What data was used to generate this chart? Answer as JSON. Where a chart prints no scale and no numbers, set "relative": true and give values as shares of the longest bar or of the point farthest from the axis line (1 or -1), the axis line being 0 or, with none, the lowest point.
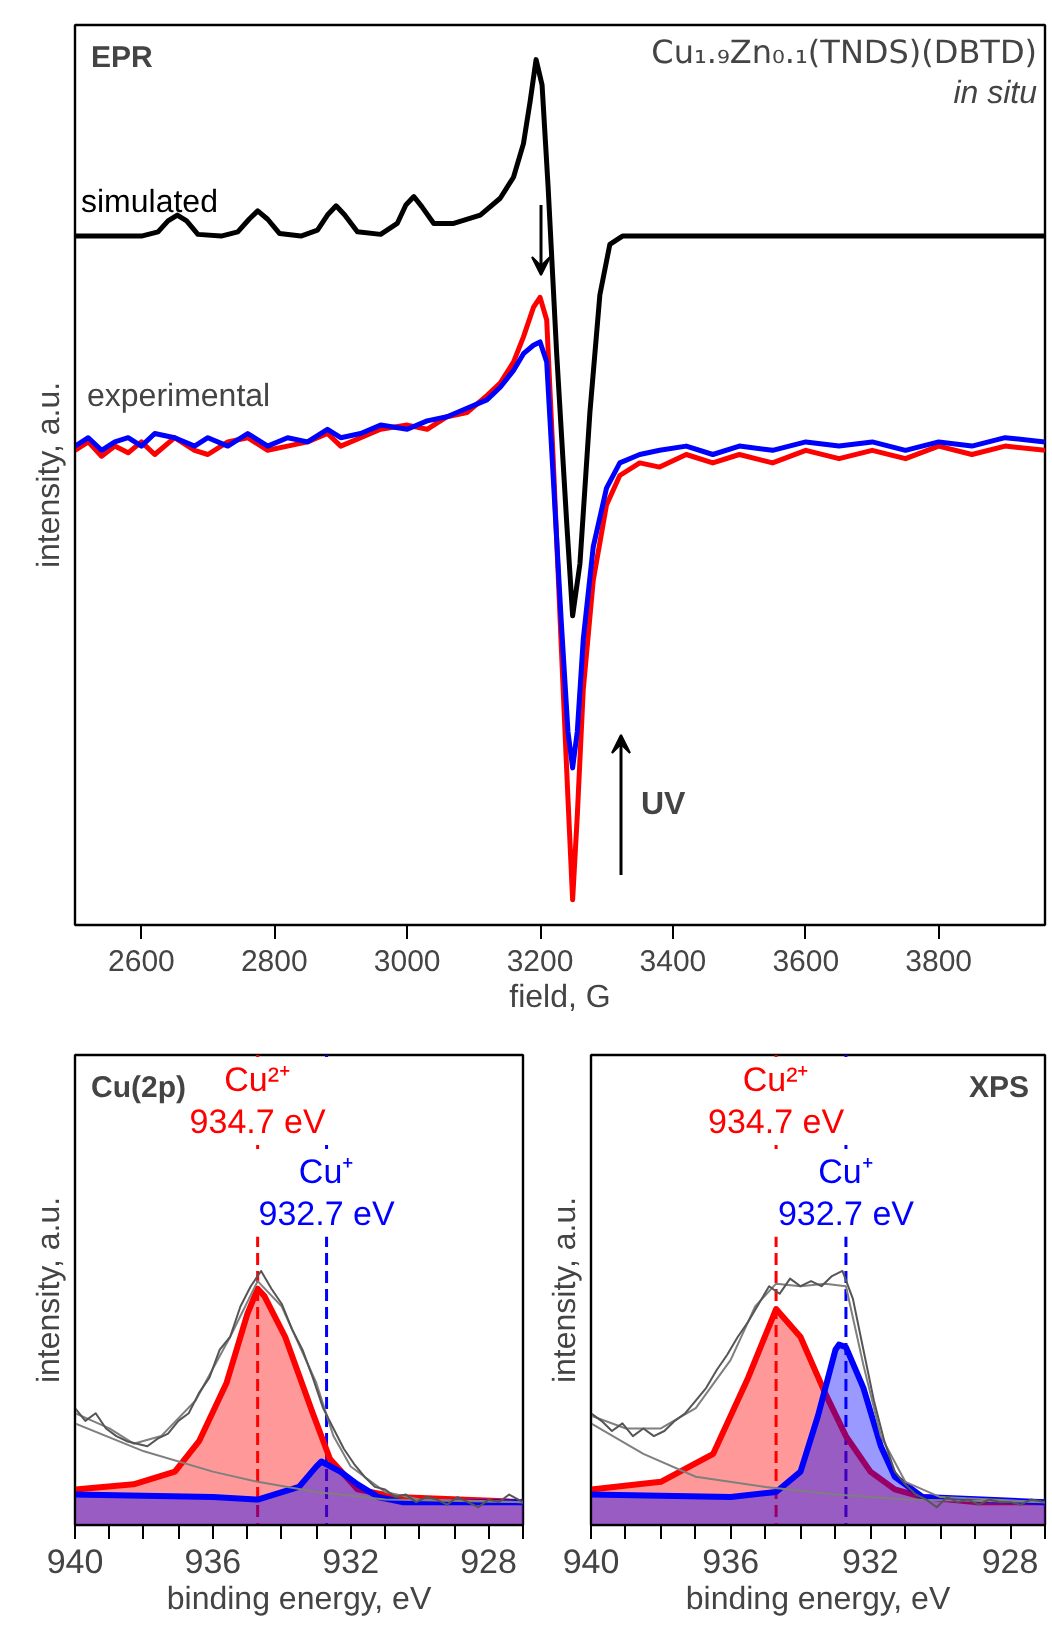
{
  "chart_data": [
    {
      "type": "line",
      "title": "EPR",
      "subtitle": "Cu₁.₉Zn₀.₁(TNDS)(DBTD)",
      "xlabel": "field, G",
      "ylabel": "intensity, a.u.",
      "relative": true,
      "grid": false,
      "xlim": [
        2500,
        3960
      ],
      "xticks": [
        2600,
        2800,
        3000,
        3200,
        3400,
        3600,
        3800
      ],
      "annotations": [
        "in situ",
        "experimental",
        "UV"
      ],
      "series": [
        {
          "name": "simulated",
          "color": "#000000",
          "x": [
            2500,
            2600,
            2625,
            2640,
            2654,
            2668,
            2685,
            2720,
            2745,
            2762,
            2775,
            2790,
            2808,
            2840,
            2865,
            2880,
            2893,
            2906,
            2925,
            2960,
            2985,
            2998,
            3010,
            3022,
            3040,
            3070,
            3110,
            3140,
            3160,
            3175,
            3185,
            3194,
            3203,
            3212,
            3225,
            3240,
            3249,
            3260,
            3275,
            3290,
            3305,
            3324,
            3960
          ],
          "values": [
            0.79,
            0.79,
            0.795,
            0.808,
            0.815,
            0.808,
            0.792,
            0.79,
            0.795,
            0.81,
            0.82,
            0.81,
            0.793,
            0.79,
            0.797,
            0.815,
            0.826,
            0.815,
            0.795,
            0.792,
            0.805,
            0.827,
            0.837,
            0.825,
            0.805,
            0.805,
            0.815,
            0.835,
            0.86,
            0.9,
            0.95,
            1.0,
            0.97,
            0.85,
            0.65,
            0.45,
            0.338,
            0.4,
            0.58,
            0.72,
            0.78,
            0.79,
            0.79
          ]
        },
        {
          "color": "#ff0000",
          "x": [
            2500,
            2520,
            2540,
            2560,
            2580,
            2600,
            2620,
            2650,
            2680,
            2700,
            2730,
            2760,
            2790,
            2820,
            2850,
            2880,
            2900,
            2930,
            2960,
            3000,
            3030,
            3060,
            3090,
            3120,
            3140,
            3160,
            3175,
            3190,
            3200,
            3210,
            3220,
            3232,
            3242,
            3249,
            3256,
            3265,
            3280,
            3300,
            3320,
            3350,
            3380,
            3420,
            3460,
            3500,
            3550,
            3600,
            3650,
            3700,
            3750,
            3800,
            3850,
            3900,
            3960
          ],
          "values": [
            0.535,
            0.545,
            0.528,
            0.54,
            0.532,
            0.545,
            0.53,
            0.55,
            0.535,
            0.53,
            0.545,
            0.55,
            0.535,
            0.54,
            0.545,
            0.555,
            0.54,
            0.55,
            0.56,
            0.565,
            0.56,
            0.575,
            0.58,
            0.6,
            0.615,
            0.64,
            0.67,
            0.705,
            0.717,
            0.69,
            0.52,
            0.3,
            0.12,
            0.0,
            0.1,
            0.25,
            0.38,
            0.47,
            0.505,
            0.52,
            0.515,
            0.53,
            0.52,
            0.53,
            0.52,
            0.535,
            0.525,
            0.535,
            0.525,
            0.54,
            0.53,
            0.54,
            0.535
          ]
        },
        {
          "color": "#0000ff",
          "x": [
            2500,
            2520,
            2540,
            2560,
            2580,
            2600,
            2620,
            2650,
            2680,
            2700,
            2730,
            2760,
            2790,
            2820,
            2850,
            2880,
            2900,
            2930,
            2960,
            3000,
            3030,
            3060,
            3090,
            3120,
            3140,
            3160,
            3175,
            3190,
            3200,
            3210,
            3220,
            3232,
            3242,
            3249,
            3256,
            3265,
            3280,
            3300,
            3320,
            3350,
            3380,
            3420,
            3460,
            3500,
            3550,
            3600,
            3650,
            3700,
            3750,
            3800,
            3850,
            3900,
            3960
          ],
          "values": [
            0.54,
            0.55,
            0.535,
            0.545,
            0.55,
            0.54,
            0.555,
            0.55,
            0.54,
            0.55,
            0.54,
            0.555,
            0.54,
            0.55,
            0.545,
            0.56,
            0.55,
            0.555,
            0.565,
            0.56,
            0.57,
            0.575,
            0.585,
            0.595,
            0.61,
            0.63,
            0.65,
            0.66,
            0.664,
            0.64,
            0.5,
            0.33,
            0.2,
            0.157,
            0.2,
            0.31,
            0.42,
            0.49,
            0.52,
            0.53,
            0.535,
            0.54,
            0.53,
            0.54,
            0.535,
            0.545,
            0.54,
            0.545,
            0.535,
            0.545,
            0.54,
            0.55,
            0.545
          ]
        }
      ]
    },
    {
      "type": "line",
      "title": "Cu(2p)",
      "xlabel": "binding energy, eV",
      "ylabel": "intensity, a.u.",
      "relative": true,
      "grid": false,
      "xlim": [
        940,
        927
      ],
      "xticks": [
        940,
        {
          "value": 939,
          "label": null
        },
        {
          "value": 938,
          "label": null
        },
        {
          "value": 937,
          "label": null
        },
        936,
        {
          "value": 935,
          "label": null
        },
        {
          "value": 934,
          "label": null
        },
        {
          "value": 933,
          "label": null
        },
        932,
        {
          "value": 931,
          "label": null
        },
        {
          "value": 930,
          "label": null
        },
        {
          "value": 929,
          "label": null
        },
        928,
        {
          "value": 927,
          "label": null
        }
      ],
      "ref_lines": [
        {
          "axis": "x",
          "value": 934.7,
          "label": "Cu²⁺\n934.7 eV",
          "color": "#ff0000",
          "line_style": "dashed"
        },
        {
          "axis": "x",
          "value": 932.7,
          "label": "Cu⁺\n932.7 eV",
          "color": "#0000ff",
          "line_style": "dashed"
        }
      ],
      "series": [
        {
          "type": "area",
          "color": "#ff0000",
          "x": [
            940,
            938.3,
            937.1,
            936.4,
            935.6,
            935.0,
            934.7,
            934.5,
            933.9,
            933.1,
            932.6,
            931.8,
            930.7,
            927
          ],
          "values": [
            0.14,
            0.16,
            0.21,
            0.33,
            0.56,
            0.83,
            0.93,
            0.9,
            0.74,
            0.44,
            0.26,
            0.14,
            0.11,
            0.09
          ]
        },
        {
          "type": "area",
          "color": "#0000ff",
          "x": [
            940,
            936,
            934.7,
            933.5,
            933.0,
            932.85,
            932.3,
            931.8,
            931.2,
            930.5,
            927
          ],
          "values": [
            0.12,
            0.11,
            0.1,
            0.15,
            0.23,
            0.25,
            0.21,
            0.16,
            0.11,
            0.09,
            0.09
          ]
        },
        {
          "color": "#7f7f7f",
          "x": [
            940,
            938,
            936,
            934.7,
            933,
            931,
            927
          ],
          "values": [
            0.4,
            0.29,
            0.21,
            0.17,
            0.13,
            0.1,
            0.09
          ]
        },
        {
          "color": "#7f7f7f",
          "x": [
            940,
            939,
            938.3,
            937.5,
            936.5,
            935.5,
            934.7,
            934,
            933,
            932.5,
            932,
            931,
            930,
            927
          ],
          "values": [
            0.44,
            0.38,
            0.32,
            0.35,
            0.49,
            0.74,
            0.96,
            0.86,
            0.56,
            0.35,
            0.23,
            0.13,
            0.1,
            0.09
          ]
        },
        {
          "color": "#555555",
          "x": [
            940,
            939.7,
            939.4,
            939.1,
            938.8,
            938.5,
            938.2,
            937.9,
            937.6,
            937.3,
            937.0,
            936.7,
            936.4,
            936.1,
            935.8,
            935.5,
            935.2,
            934.9,
            934.6,
            934.3,
            934.0,
            933.7,
            933.4,
            933.1,
            932.8,
            932.5,
            932.2,
            931.9,
            931.6,
            931.3,
            931.0,
            930.7,
            930.4,
            930.1,
            929.8,
            929.5,
            929.2,
            928.9,
            928.6,
            928.3,
            928,
            927.7,
            927.4,
            927
          ],
          "values": [
            0.46,
            0.41,
            0.44,
            0.38,
            0.35,
            0.33,
            0.32,
            0.31,
            0.34,
            0.36,
            0.41,
            0.44,
            0.52,
            0.58,
            0.69,
            0.74,
            0.86,
            0.94,
            1.0,
            0.93,
            0.87,
            0.77,
            0.69,
            0.58,
            0.46,
            0.38,
            0.3,
            0.24,
            0.19,
            0.15,
            0.14,
            0.11,
            0.12,
            0.09,
            0.11,
            0.1,
            0.08,
            0.11,
            0.09,
            0.07,
            0.1,
            0.09,
            0.12,
            0.09
          ]
        }
      ]
    },
    {
      "type": "line",
      "title": "XPS",
      "xlabel": "binding energy, eV",
      "ylabel": "intensity, a.u.",
      "relative": true,
      "grid": false,
      "xlim": [
        940,
        927
      ],
      "xticks": [
        940,
        {
          "value": 939,
          "label": null
        },
        {
          "value": 938,
          "label": null
        },
        {
          "value": 937,
          "label": null
        },
        936,
        {
          "value": 935,
          "label": null
        },
        {
          "value": 934,
          "label": null
        },
        {
          "value": 933,
          "label": null
        },
        932,
        {
          "value": 931,
          "label": null
        },
        {
          "value": 930,
          "label": null
        },
        {
          "value": 929,
          "label": null
        },
        928,
        {
          "value": 927,
          "label": null
        }
      ],
      "ref_lines": [
        {
          "axis": "x",
          "value": 934.7,
          "label": "Cu²⁺\n934.7 eV",
          "color": "#ff0000",
          "line_style": "dashed"
        },
        {
          "axis": "x",
          "value": 932.7,
          "label": "Cu⁺\n932.7 eV",
          "color": "#0000ff",
          "line_style": "dashed"
        }
      ],
      "series": [
        {
          "type": "area",
          "color": "#ff0000",
          "x": [
            940,
            938,
            936.5,
            935.5,
            934.7,
            934,
            933.3,
            932.7,
            932,
            931.3,
            930.5,
            929,
            927
          ],
          "values": [
            0.14,
            0.17,
            0.28,
            0.58,
            0.85,
            0.74,
            0.52,
            0.35,
            0.21,
            0.14,
            0.11,
            0.09,
            0.09
          ]
        },
        {
          "type": "area",
          "color": "#0000ff",
          "x": [
            940,
            936,
            934.7,
            934,
            933.5,
            933.0,
            932.9,
            932.7,
            932.2,
            931.7,
            931.3,
            930.5,
            927
          ],
          "values": [
            0.12,
            0.11,
            0.13,
            0.21,
            0.43,
            0.69,
            0.71,
            0.7,
            0.54,
            0.31,
            0.19,
            0.11,
            0.09
          ]
        },
        {
          "color": "#7f7f7f",
          "x": [
            940,
            938.5,
            937,
            935,
            933,
            931,
            927
          ],
          "values": [
            0.4,
            0.28,
            0.19,
            0.15,
            0.12,
            0.1,
            0.09
          ]
        },
        {
          "color": "#7f7f7f",
          "x": [
            940,
            939,
            938,
            937,
            936,
            935.3,
            934.7,
            934,
            933.3,
            932.7,
            932.2,
            931.7,
            931,
            930,
            927
          ],
          "values": [
            0.43,
            0.38,
            0.38,
            0.46,
            0.65,
            0.86,
            0.95,
            0.94,
            0.95,
            0.94,
            0.63,
            0.35,
            0.17,
            0.11,
            0.09
          ]
        },
        {
          "color": "#555555",
          "x": [
            940,
            939.7,
            939.4,
            939.1,
            938.8,
            938.5,
            938.2,
            937.9,
            937.6,
            937.3,
            937.0,
            936.7,
            936.4,
            936.1,
            935.8,
            935.5,
            935.2,
            934.9,
            934.6,
            934.3,
            934.0,
            933.7,
            933.4,
            933.1,
            932.8,
            932.5,
            932.2,
            931.9,
            931.6,
            931.3,
            931.0,
            930.7,
            930.4,
            930.1,
            929.8,
            929.5,
            929.2,
            928.9,
            928.6,
            928.3,
            928,
            927.7,
            927.4,
            927
          ],
          "values": [
            0.44,
            0.41,
            0.37,
            0.4,
            0.35,
            0.38,
            0.35,
            0.37,
            0.41,
            0.44,
            0.49,
            0.54,
            0.61,
            0.67,
            0.74,
            0.8,
            0.87,
            0.94,
            0.91,
            0.97,
            0.94,
            0.96,
            0.94,
            0.98,
            1.0,
            0.89,
            0.69,
            0.49,
            0.33,
            0.21,
            0.16,
            0.12,
            0.1,
            0.07,
            0.11,
            0.09,
            0.1,
            0.08,
            0.1,
            0.09,
            0.09,
            0.08,
            0.1,
            0.09
          ]
        }
      ]
    }
  ]
}
